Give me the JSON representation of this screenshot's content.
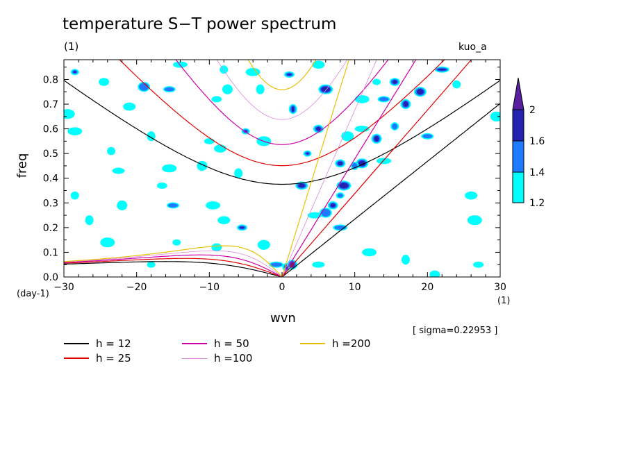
{
  "title": "temperature S−T power spectrum",
  "units": "(1)",
  "run": "kuo_a",
  "sigma": "[ sigma=0.22953 ]",
  "colors": {
    "level1": "#00ffff",
    "level2": "#1e7bff",
    "level3": "#2323b0",
    "level4": "#5a1fa0"
  },
  "chart_data": {
    "type": "heatmap",
    "xlabel": "wvn",
    "ylabel": "freq",
    "x_unit": "(1)",
    "y_unit": "(day-1)",
    "xlim": [
      -30,
      30
    ],
    "ylim": [
      0,
      0.88
    ],
    "x_ticks": [
      -30,
      -20,
      -10,
      0,
      10,
      20,
      30
    ],
    "x_tick_labels": [
      "−30",
      "−20",
      "−10",
      "0",
      "10",
      "20",
      "30"
    ],
    "y_ticks": [
      0.0,
      0.1,
      0.2,
      0.3,
      0.4,
      0.5,
      0.6,
      0.7,
      0.8
    ],
    "y_tick_labels": [
      "0.0",
      "0.1",
      "0.2",
      "0.3",
      "0.4",
      "0.5",
      "0.6",
      "0.7",
      "0.8"
    ],
    "colorbar": {
      "levels": [
        1.2,
        1.4,
        1.6,
        2
      ],
      "labels": [
        "1.2",
        "1.4",
        "1.6",
        "2"
      ]
    },
    "dispersion_curves": [
      {
        "name": "h = 12",
        "h": 12,
        "color": "#000000",
        "width": 1.2
      },
      {
        "name": "h = 25",
        "h": 25,
        "color": "#dd0000",
        "width": 1.2
      },
      {
        "name": "h = 50",
        "h": 50,
        "color": "#cc00aa",
        "width": 1.2
      },
      {
        "name": "h =100",
        "h": 100,
        "color": "#dd88dd",
        "width": 0.8
      },
      {
        "name": "h =200",
        "h": 200,
        "color": "#e8c000",
        "width": 1.2
      }
    ],
    "contour_blobs": [
      {
        "x": -28.5,
        "y": 0.83,
        "level": 3
      },
      {
        "x": -24.5,
        "y": 0.79,
        "level": 1
      },
      {
        "x": -19,
        "y": 0.77,
        "level": 2
      },
      {
        "x": -14,
        "y": 0.86,
        "level": 1
      },
      {
        "x": -8,
        "y": 0.84,
        "level": 1
      },
      {
        "x": -7.5,
        "y": 0.76,
        "level": 1
      },
      {
        "x": -15.5,
        "y": 0.76,
        "level": 2
      },
      {
        "x": -4,
        "y": 0.83,
        "level": 1
      },
      {
        "x": -3,
        "y": 0.76,
        "level": 1
      },
      {
        "x": 1,
        "y": 0.82,
        "level": 3
      },
      {
        "x": 5,
        "y": 0.86,
        "level": 1
      },
      {
        "x": 6,
        "y": 0.76,
        "level": 3
      },
      {
        "x": 13,
        "y": 0.79,
        "level": 1
      },
      {
        "x": 15.5,
        "y": 0.79,
        "level": 3
      },
      {
        "x": 19,
        "y": 0.75,
        "level": 3
      },
      {
        "x": 22,
        "y": 0.84,
        "level": 3
      },
      {
        "x": 24,
        "y": 0.78,
        "level": 1
      },
      {
        "x": 17,
        "y": 0.7,
        "level": 3
      },
      {
        "x": 14,
        "y": 0.72,
        "level": 2
      },
      {
        "x": 11,
        "y": 0.72,
        "level": 1
      },
      {
        "x": 1.5,
        "y": 0.68,
        "level": 3
      },
      {
        "x": -9,
        "y": 0.72,
        "level": 1
      },
      {
        "x": -21,
        "y": 0.69,
        "level": 1
      },
      {
        "x": -29.5,
        "y": 0.66,
        "level": 1
      },
      {
        "x": -5,
        "y": 0.59,
        "level": 3
      },
      {
        "x": 5,
        "y": 0.6,
        "level": 3
      },
      {
        "x": 9,
        "y": 0.57,
        "level": 1
      },
      {
        "x": 11,
        "y": 0.6,
        "level": 1
      },
      {
        "x": 15.5,
        "y": 0.61,
        "level": 2
      },
      {
        "x": 13,
        "y": 0.56,
        "level": 3
      },
      {
        "x": 20,
        "y": 0.57,
        "level": 2
      },
      {
        "x": -28.5,
        "y": 0.59,
        "level": 1
      },
      {
        "x": -18,
        "y": 0.57,
        "level": 1
      },
      {
        "x": -10,
        "y": 0.55,
        "level": 1
      },
      {
        "x": -8.5,
        "y": 0.52,
        "level": 1
      },
      {
        "x": -2.5,
        "y": 0.55,
        "level": 1
      },
      {
        "x": 3.5,
        "y": 0.5,
        "level": 3
      },
      {
        "x": 8,
        "y": 0.46,
        "level": 3
      },
      {
        "x": 11,
        "y": 0.46,
        "level": 3
      },
      {
        "x": 14,
        "y": 0.47,
        "level": 1
      },
      {
        "x": -23.5,
        "y": 0.51,
        "level": 1
      },
      {
        "x": -11,
        "y": 0.45,
        "level": 1
      },
      {
        "x": -22.5,
        "y": 0.43,
        "level": 1
      },
      {
        "x": -15.5,
        "y": 0.44,
        "level": 1
      },
      {
        "x": -6,
        "y": 0.42,
        "level": 1
      },
      {
        "x": -16.5,
        "y": 0.37,
        "level": 1
      },
      {
        "x": 2.7,
        "y": 0.37,
        "level": 3
      },
      {
        "x": 8.5,
        "y": 0.37,
        "level": 3
      },
      {
        "x": 8,
        "y": 0.33,
        "level": 2
      },
      {
        "x": 7,
        "y": 0.29,
        "level": 3
      },
      {
        "x": 6,
        "y": 0.26,
        "level": 2
      },
      {
        "x": 4.5,
        "y": 0.25,
        "level": 1
      },
      {
        "x": -28.5,
        "y": 0.33,
        "level": 1
      },
      {
        "x": -22,
        "y": 0.29,
        "level": 1
      },
      {
        "x": -15,
        "y": 0.29,
        "level": 2
      },
      {
        "x": -9.5,
        "y": 0.29,
        "level": 1
      },
      {
        "x": -26.5,
        "y": 0.23,
        "level": 1
      },
      {
        "x": -5.5,
        "y": 0.2,
        "level": 3
      },
      {
        "x": -8,
        "y": 0.23,
        "level": 1
      },
      {
        "x": -24,
        "y": 0.14,
        "level": 1
      },
      {
        "x": -14.5,
        "y": 0.14,
        "level": 1
      },
      {
        "x": -9,
        "y": 0.12,
        "level": 1
      },
      {
        "x": -2.5,
        "y": 0.13,
        "level": 1
      },
      {
        "x": -0.8,
        "y": 0.05,
        "level": 2
      },
      {
        "x": 0.6,
        "y": 0.04,
        "level": 3
      },
      {
        "x": 1.4,
        "y": 0.05,
        "level": 4
      },
      {
        "x": 5,
        "y": 0.05,
        "level": 1
      },
      {
        "x": 12,
        "y": 0.1,
        "level": 1
      },
      {
        "x": 17,
        "y": 0.07,
        "level": 1
      },
      {
        "x": 27,
        "y": 0.05,
        "level": 1
      },
      {
        "x": 26,
        "y": 0.33,
        "level": 1
      },
      {
        "x": 26.5,
        "y": 0.23,
        "level": 1
      },
      {
        "x": -18,
        "y": 0.05,
        "level": 1
      },
      {
        "x": 21,
        "y": 0.01,
        "level": 1
      },
      {
        "x": 29.5,
        "y": 0.65,
        "level": 1
      },
      {
        "x": 8,
        "y": 0.2,
        "level": 2
      },
      {
        "x": 10,
        "y": 0.45,
        "level": 2
      }
    ]
  }
}
